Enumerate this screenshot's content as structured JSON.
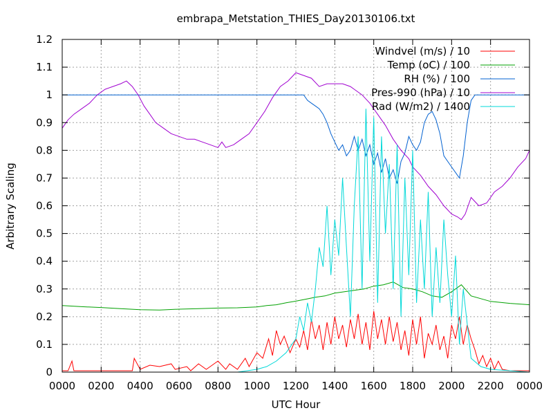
{
  "chart_data": {
    "type": "line",
    "title": "embrapa_Metstation_THIES_Day20130106.txt",
    "xlabel": "UTC Hour",
    "ylabel": "Arbitrary Scaling",
    "xlim": [
      0,
      24
    ],
    "ylim": [
      0,
      1.2
    ],
    "xticks": [
      {
        "value": 0,
        "label": "0000"
      },
      {
        "value": 2,
        "label": "0200"
      },
      {
        "value": 4,
        "label": "0400"
      },
      {
        "value": 6,
        "label": "0600"
      },
      {
        "value": 8,
        "label": "0800"
      },
      {
        "value": 10,
        "label": "1000"
      },
      {
        "value": 12,
        "label": "1200"
      },
      {
        "value": 14,
        "label": "1400"
      },
      {
        "value": 16,
        "label": "1600"
      },
      {
        "value": 18,
        "label": "1800"
      },
      {
        "value": 20,
        "label": "2000"
      },
      {
        "value": 22,
        "label": "2200"
      },
      {
        "value": 24,
        "label": "0000"
      }
    ],
    "yticks": [
      {
        "value": 0,
        "label": "0"
      },
      {
        "value": 0.1,
        "label": "0.1"
      },
      {
        "value": 0.2,
        "label": "0.2"
      },
      {
        "value": 0.3,
        "label": "0.3"
      },
      {
        "value": 0.4,
        "label": "0.4"
      },
      {
        "value": 0.5,
        "label": "0.5"
      },
      {
        "value": 0.6,
        "label": "0.6"
      },
      {
        "value": 0.7,
        "label": "0.7"
      },
      {
        "value": 0.8,
        "label": "0.8"
      },
      {
        "value": 0.9,
        "label": "0.9"
      },
      {
        "value": 1.0,
        "label": "1"
      },
      {
        "value": 1.1,
        "label": "1.1"
      },
      {
        "value": 1.2,
        "label": "1.2"
      }
    ],
    "grid": true,
    "legend_position": "top-right",
    "series": [
      {
        "name": "Windvel (m/s) / 10",
        "color": "#ff0000",
        "x": [
          0,
          0.3,
          0.5,
          0.6,
          1,
          2,
          3,
          3.6,
          3.7,
          4,
          4.5,
          5,
          5.6,
          5.8,
          6.4,
          6.6,
          7,
          7.4,
          7.6,
          8,
          8.4,
          8.6,
          9,
          9.4,
          9.6,
          10,
          10.3,
          10.6,
          10.8,
          11,
          11.2,
          11.4,
          11.7,
          12,
          12.2,
          12.4,
          12.6,
          12.8,
          13,
          13.2,
          13.4,
          13.6,
          13.8,
          14,
          14.2,
          14.4,
          14.6,
          14.8,
          15,
          15.2,
          15.4,
          15.6,
          15.8,
          16,
          16.2,
          16.4,
          16.6,
          16.8,
          17,
          17.2,
          17.4,
          17.6,
          17.8,
          18,
          18.2,
          18.4,
          18.6,
          18.8,
          19,
          19.2,
          19.4,
          19.6,
          19.8,
          20,
          20.2,
          20.4,
          20.6,
          20.8,
          21,
          21.2,
          21.4,
          21.6,
          21.8,
          22,
          22.2,
          22.4,
          22.6,
          23,
          24
        ],
        "y": [
          0.005,
          0.005,
          0.04,
          0.005,
          0.005,
          0.005,
          0.005,
          0.005,
          0.05,
          0.01,
          0.025,
          0.02,
          0.03,
          0.01,
          0.02,
          0.005,
          0.03,
          0.01,
          0.02,
          0.04,
          0.01,
          0.03,
          0.01,
          0.05,
          0.02,
          0.07,
          0.05,
          0.12,
          0.06,
          0.15,
          0.1,
          0.13,
          0.07,
          0.12,
          0.09,
          0.15,
          0.08,
          0.19,
          0.12,
          0.17,
          0.08,
          0.18,
          0.1,
          0.2,
          0.12,
          0.17,
          0.09,
          0.19,
          0.12,
          0.21,
          0.1,
          0.18,
          0.08,
          0.22,
          0.12,
          0.19,
          0.1,
          0.2,
          0.11,
          0.18,
          0.08,
          0.15,
          0.06,
          0.19,
          0.1,
          0.2,
          0.05,
          0.14,
          0.1,
          0.17,
          0.08,
          0.13,
          0.05,
          0.17,
          0.12,
          0.2,
          0.1,
          0.17,
          0.12,
          0.08,
          0.03,
          0.06,
          0.02,
          0.05,
          0.01,
          0.04,
          0.01,
          0.005,
          0.005
        ]
      },
      {
        "name": "Temp (oC) / 100",
        "color": "#00a000",
        "x": [
          0,
          1,
          2,
          3,
          4,
          5,
          6,
          7,
          8,
          9,
          10,
          10.5,
          11,
          11.5,
          12,
          12.5,
          13,
          13.5,
          14,
          14.5,
          15,
          15.5,
          16,
          16.5,
          17,
          17.5,
          18,
          18.5,
          19,
          19.5,
          20,
          20.5,
          21,
          22,
          23,
          24
        ],
        "y": [
          0.24,
          0.236,
          0.233,
          0.229,
          0.225,
          0.224,
          0.227,
          0.229,
          0.231,
          0.232,
          0.235,
          0.24,
          0.243,
          0.25,
          0.256,
          0.263,
          0.27,
          0.275,
          0.285,
          0.29,
          0.295,
          0.3,
          0.31,
          0.315,
          0.325,
          0.305,
          0.3,
          0.29,
          0.275,
          0.27,
          0.29,
          0.315,
          0.275,
          0.255,
          0.248,
          0.243
        ]
      },
      {
        "name": "RH (%) / 100",
        "color": "#0060d0",
        "x": [
          0,
          6,
          10,
          12,
          12.4,
          12.6,
          12.8,
          13,
          13.2,
          13.4,
          13.6,
          13.8,
          14,
          14.2,
          14.4,
          14.6,
          14.8,
          15,
          15.2,
          15.4,
          15.6,
          15.8,
          16,
          16.2,
          16.4,
          16.6,
          16.8,
          17,
          17.2,
          17.4,
          17.6,
          17.8,
          18,
          18.2,
          18.4,
          18.6,
          18.8,
          19,
          19.2,
          19.4,
          19.6,
          19.8,
          20,
          20.2,
          20.4,
          20.6,
          20.8,
          21,
          21.2,
          22,
          24
        ],
        "y": [
          1.0,
          1.0,
          1.0,
          1.0,
          1.0,
          0.98,
          0.97,
          0.96,
          0.95,
          0.93,
          0.9,
          0.86,
          0.83,
          0.8,
          0.82,
          0.78,
          0.8,
          0.85,
          0.8,
          0.84,
          0.78,
          0.82,
          0.75,
          0.79,
          0.72,
          0.77,
          0.7,
          0.73,
          0.68,
          0.76,
          0.79,
          0.85,
          0.82,
          0.8,
          0.83,
          0.9,
          0.93,
          0.94,
          0.91,
          0.86,
          0.78,
          0.76,
          0.74,
          0.72,
          0.7,
          0.78,
          0.9,
          0.98,
          1.0,
          1.0,
          1.0
        ]
      },
      {
        "name": "Pres-990 (hPa) / 10",
        "color": "#a000d0",
        "x": [
          0,
          0.3,
          0.6,
          1,
          1.4,
          1.8,
          2.2,
          2.6,
          3,
          3.3,
          3.6,
          3.9,
          4.2,
          4.5,
          4.8,
          5.2,
          5.6,
          6,
          6.4,
          6.8,
          7.2,
          7.6,
          8,
          8.2,
          8.4,
          8.8,
          9.2,
          9.6,
          10,
          10.4,
          10.8,
          11.2,
          11.6,
          12,
          12.4,
          12.8,
          13.2,
          13.6,
          14,
          14.4,
          14.8,
          15,
          15.4,
          15.8,
          16.2,
          16.6,
          17,
          17.4,
          17.8,
          18,
          18.4,
          18.8,
          19.2,
          19.6,
          20,
          20.3,
          20.5,
          20.7,
          21,
          21.4,
          21.8,
          22.2,
          22.6,
          23,
          23.4,
          23.8,
          24
        ],
        "y": [
          0.88,
          0.91,
          0.93,
          0.95,
          0.97,
          1.0,
          1.02,
          1.03,
          1.04,
          1.05,
          1.03,
          1.0,
          0.96,
          0.93,
          0.9,
          0.88,
          0.86,
          0.85,
          0.84,
          0.84,
          0.83,
          0.82,
          0.81,
          0.83,
          0.81,
          0.82,
          0.84,
          0.86,
          0.9,
          0.94,
          0.99,
          1.03,
          1.05,
          1.08,
          1.07,
          1.06,
          1.03,
          1.04,
          1.04,
          1.04,
          1.03,
          1.02,
          1.0,
          0.97,
          0.93,
          0.89,
          0.84,
          0.8,
          0.77,
          0.74,
          0.71,
          0.67,
          0.64,
          0.6,
          0.57,
          0.56,
          0.55,
          0.57,
          0.63,
          0.6,
          0.61,
          0.65,
          0.67,
          0.7,
          0.74,
          0.77,
          0.8
        ]
      },
      {
        "name": "Rad (W/m2) / 1400",
        "color": "#00d8d8",
        "x": [
          0,
          9,
          10,
          10.5,
          11,
          11.5,
          12,
          12.2,
          12.4,
          12.6,
          12.8,
          13,
          13.2,
          13.4,
          13.6,
          13.8,
          14,
          14.2,
          14.4,
          14.6,
          14.8,
          15,
          15.2,
          15.4,
          15.6,
          15.8,
          16,
          16.2,
          16.4,
          16.6,
          16.8,
          17,
          17.2,
          17.4,
          17.6,
          17.8,
          18,
          18.2,
          18.4,
          18.6,
          18.8,
          19,
          19.2,
          19.4,
          19.6,
          19.8,
          20,
          20.2,
          20.4,
          20.6,
          21,
          21.5,
          22,
          24
        ],
        "y": [
          0.0,
          0.0,
          0.01,
          0.02,
          0.04,
          0.07,
          0.12,
          0.2,
          0.15,
          0.25,
          0.18,
          0.3,
          0.45,
          0.38,
          0.6,
          0.35,
          0.55,
          0.42,
          0.7,
          0.45,
          0.2,
          0.6,
          0.85,
          0.3,
          0.95,
          0.4,
          0.92,
          0.25,
          0.85,
          0.5,
          0.75,
          0.3,
          0.82,
          0.2,
          0.7,
          0.35,
          0.8,
          0.25,
          0.55,
          0.3,
          0.65,
          0.2,
          0.45,
          0.25,
          0.55,
          0.35,
          0.2,
          0.42,
          0.1,
          0.3,
          0.05,
          0.02,
          0.01,
          0.0
        ]
      }
    ]
  }
}
